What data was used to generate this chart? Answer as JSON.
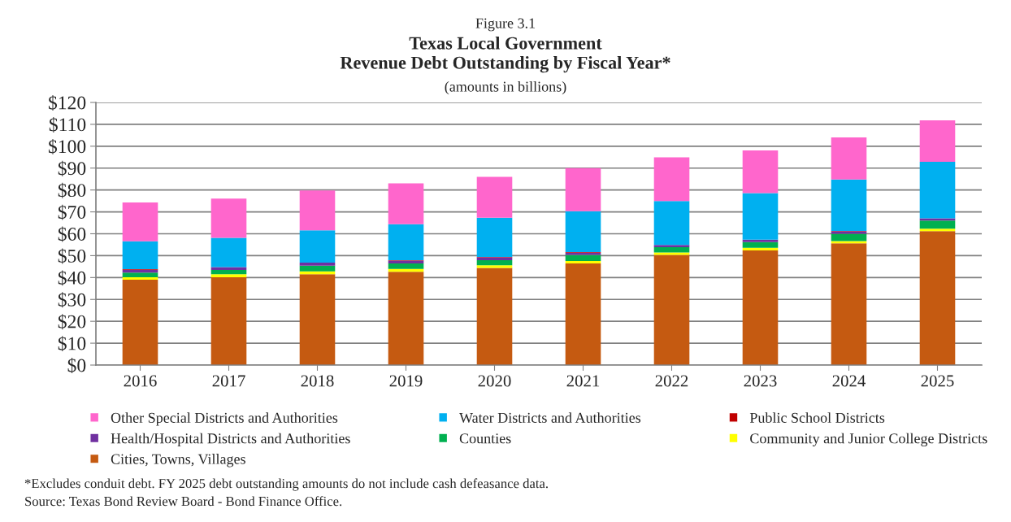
{
  "chart_data": {
    "type": "bar",
    "stacked": true,
    "title": "Texas Local Government\nRevenue Debt Outstanding by Fiscal Year*",
    "subtitle": "(amounts in billions)",
    "annotations": [
      "Figure 3.1",
      "*Excludes conduit debt. FY 2025 debt outstanding amounts do not include cash defeasance data.",
      "Source: Texas Bond Review Board - Bond Finance Office."
    ],
    "categories": [
      "2016",
      "2017",
      "2018",
      "2019",
      "2020",
      "2021",
      "2022",
      "2023",
      "2024",
      "2025"
    ],
    "series": [
      {
        "name": "Cities, Towns, Villages",
        "color": "#c55a11",
        "values": [
          39.0,
          40.1,
          41.5,
          42.6,
          44.4,
          46.4,
          50.3,
          52.4,
          55.6,
          61.2
        ]
      },
      {
        "name": "Community and Junior College Districts",
        "color": "#ffff00",
        "values": [
          1.1,
          1.4,
          1.3,
          1.3,
          1.2,
          1.2,
          1.2,
          1.2,
          1.1,
          1.1
        ]
      },
      {
        "name": "Counties",
        "color": "#00b050",
        "values": [
          2.2,
          2.0,
          2.6,
          2.5,
          2.3,
          2.7,
          2.4,
          2.6,
          3.3,
          3.7
        ]
      },
      {
        "name": "Health/Hospital Districts and Authorities",
        "color": "#7030a0",
        "values": [
          1.3,
          1.3,
          1.4,
          1.3,
          1.3,
          1.1,
          1.0,
          1.1,
          1.1,
          1.1
        ]
      },
      {
        "name": "Public School Districts",
        "color": "#c00000",
        "values": [
          0.2,
          null,
          null,
          0.2,
          0.2,
          0.2,
          null,
          null,
          0.2,
          null
        ]
      },
      {
        "name": "Water Districts and Authorities",
        "color": "#00b0f0",
        "values": [
          12.8,
          13.3,
          14.8,
          16.5,
          17.9,
          18.7,
          20.1,
          21.3,
          23.5,
          25.8
        ]
      },
      {
        "name": "Other Special Districts and Authorities",
        "color": "#ff66cc",
        "values": [
          17.7,
          18.0,
          18.2,
          18.6,
          18.7,
          19.7,
          19.9,
          19.5,
          19.2,
          18.9
        ]
      }
    ],
    "ylim": [
      0,
      120
    ],
    "yticks": [
      {
        "value": 0,
        "label": "$0"
      },
      {
        "value": 10,
        "label": "$10"
      },
      {
        "value": 20,
        "label": "$20"
      },
      {
        "value": 30,
        "label": "$30"
      },
      {
        "value": 40,
        "label": "$40"
      },
      {
        "value": 50,
        "label": "$50"
      },
      {
        "value": 60,
        "label": "$60"
      },
      {
        "value": 70,
        "label": "$70"
      },
      {
        "value": 80,
        "label": "$80"
      },
      {
        "value": 90,
        "label": "$90"
      },
      {
        "value": 100,
        "label": "$100"
      },
      {
        "value": 110,
        "label": "$110"
      },
      {
        "value": 120,
        "label": "$120"
      }
    ],
    "grid": "y",
    "legend": "bottom"
  }
}
